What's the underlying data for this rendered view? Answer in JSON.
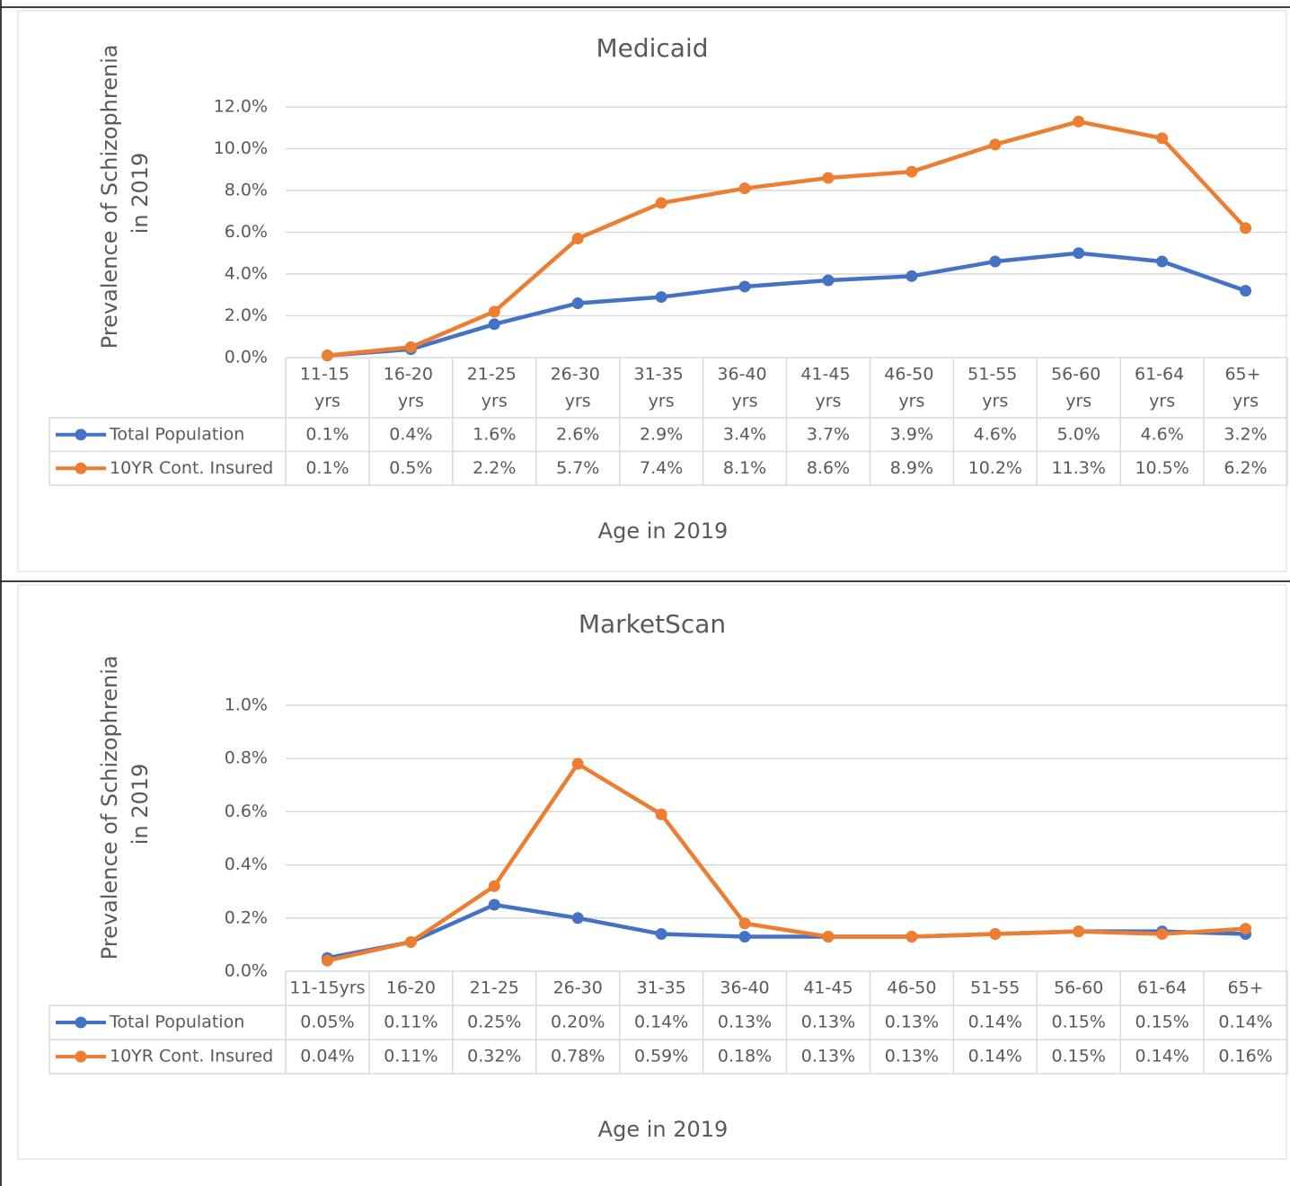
{
  "chart_data": [
    {
      "type": "line",
      "title": "Medicaid",
      "y_label": "Prevalence of Schizophrenia in 2019",
      "x_label": "Age in 2019",
      "categories": [
        "11-15 yrs",
        "16-20 yrs",
        "21-25 yrs",
        "26-30 yrs",
        "31-35 yrs",
        "36-40 yrs",
        "41-45 yrs",
        "46-50 yrs",
        "51-55 yrs",
        "56-60 yrs",
        "61-64 yrs",
        "65+ yrs"
      ],
      "series": [
        {
          "name": "Total Population",
          "color": "#4472c4",
          "values": [
            0.1,
            0.4,
            1.6,
            2.6,
            2.9,
            3.4,
            3.7,
            3.9,
            4.6,
            5.0,
            4.6,
            3.2
          ],
          "value_labels": [
            "0.1%",
            "0.4%",
            "1.6%",
            "2.6%",
            "2.9%",
            "3.4%",
            "3.7%",
            "3.9%",
            "4.6%",
            "5.0%",
            "4.6%",
            "3.2%"
          ]
        },
        {
          "name": "10YR Cont. Insured",
          "color": "#ed7d31",
          "values": [
            0.1,
            0.5,
            2.2,
            5.7,
            7.4,
            8.1,
            8.6,
            8.9,
            10.2,
            11.3,
            10.5,
            6.2
          ],
          "value_labels": [
            "0.1%",
            "0.5%",
            "2.2%",
            "5.7%",
            "7.4%",
            "8.1%",
            "8.6%",
            "8.9%",
            "10.2%",
            "11.3%",
            "10.5%",
            "6.2%"
          ]
        }
      ],
      "ylim": [
        0,
        12
      ],
      "yticks": [
        {
          "value": 0,
          "label": "0.0%"
        },
        {
          "value": 2,
          "label": "2.0%"
        },
        {
          "value": 4,
          "label": "4.0%"
        },
        {
          "value": 6,
          "label": "6.0%"
        },
        {
          "value": 8,
          "label": "8.0%"
        },
        {
          "value": 10,
          "label": "10.0%"
        },
        {
          "value": 12,
          "label": "12.0%"
        }
      ],
      "grid": true
    },
    {
      "type": "line",
      "title": "MarketScan",
      "y_label": "Prevalence of Schizophrenia in 2019",
      "x_label": "Age in 2019",
      "categories": [
        "11-15yrs",
        "16-20",
        "21-25",
        "26-30",
        "31-35",
        "36-40",
        "41-45",
        "46-50",
        "51-55",
        "56-60",
        "61-64",
        "65+"
      ],
      "series": [
        {
          "name": "Total Population",
          "color": "#4472c4",
          "values": [
            0.05,
            0.11,
            0.25,
            0.2,
            0.14,
            0.13,
            0.13,
            0.13,
            0.14,
            0.15,
            0.15,
            0.14
          ],
          "value_labels": [
            "0.05%",
            "0.11%",
            "0.25%",
            "0.20%",
            "0.14%",
            "0.13%",
            "0.13%",
            "0.13%",
            "0.14%",
            "0.15%",
            "0.15%",
            "0.14%"
          ]
        },
        {
          "name": "10YR Cont. Insured",
          "color": "#ed7d31",
          "values": [
            0.04,
            0.11,
            0.32,
            0.78,
            0.59,
            0.18,
            0.13,
            0.13,
            0.14,
            0.15,
            0.14,
            0.16
          ],
          "value_labels": [
            "0.04%",
            "0.11%",
            "0.32%",
            "0.78%",
            "0.59%",
            "0.18%",
            "0.13%",
            "0.13%",
            "0.14%",
            "0.15%",
            "0.14%",
            "0.16%"
          ]
        }
      ],
      "ylim": [
        0,
        1
      ],
      "yticks": [
        {
          "value": 0,
          "label": "0.0%"
        },
        {
          "value": 0.2,
          "label": "0.2%"
        },
        {
          "value": 0.4,
          "label": "0.4%"
        },
        {
          "value": 0.6,
          "label": "0.6%"
        },
        {
          "value": 0.8,
          "label": "0.8%"
        },
        {
          "value": 1,
          "label": "1.0%"
        }
      ],
      "grid": true
    }
  ]
}
